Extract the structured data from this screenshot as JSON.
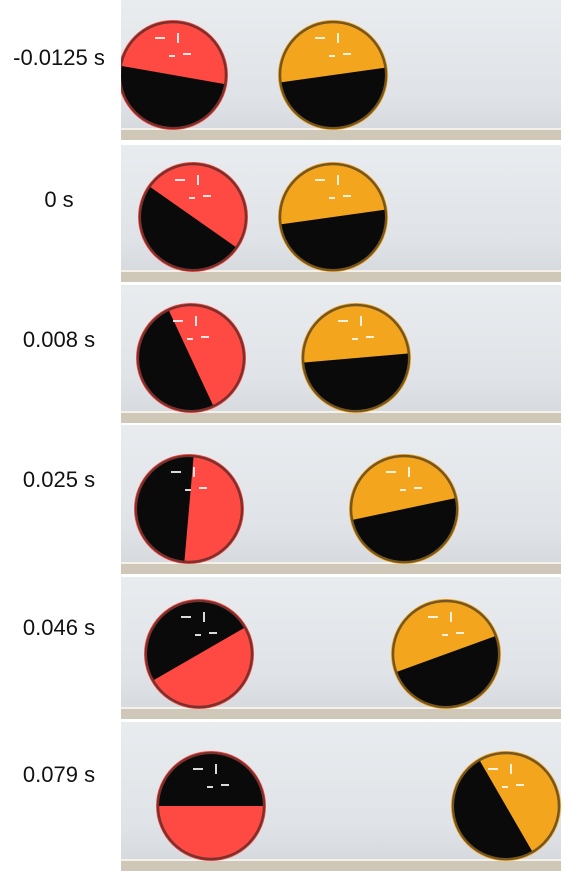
{
  "frames": [
    {
      "time": "-0.0125 s",
      "red_angle": 10,
      "orange_angle": -8
    },
    {
      "time": "0 s",
      "red_angle": 35,
      "orange_angle": -8
    },
    {
      "time": "0.008 s",
      "red_angle": 65,
      "orange_angle": -5
    },
    {
      "time": "0.025 s",
      "red_angle": 95,
      "orange_angle": -12
    },
    {
      "time": "0.046 s",
      "red_angle": 150,
      "orange_angle": -20
    },
    {
      "time": "0.079 s",
      "red_angle": 180,
      "orange_angle": 60
    }
  ],
  "colors": {
    "red_ball": "#ff4a43",
    "orange_ball": "#f3a51e",
    "dark_fill": "#0a0a0a",
    "background": "#e4e7ea",
    "floor": "#cfc8b8"
  }
}
